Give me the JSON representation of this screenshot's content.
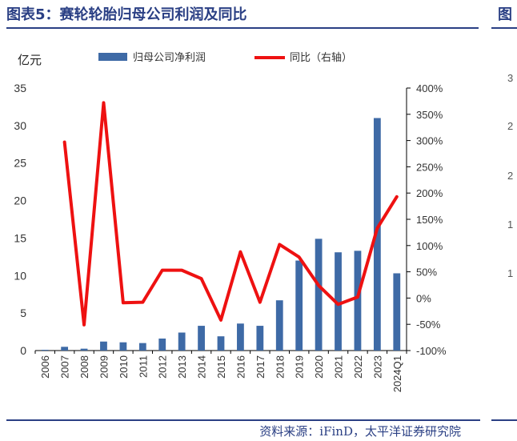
{
  "header": {
    "title": "图表5：赛轮轮胎归母公司利润及同比",
    "neighbor_title_fragment": "图"
  },
  "footer": {
    "source": "资料来源：iFinD，太平洋证券研究院"
  },
  "neighbor_chart_ticks": [
    "3",
    "2",
    "2",
    "1",
    "1"
  ],
  "chart_data": {
    "type": "bar",
    "title": "赛轮轮胎归母公司利润及同比",
    "categories": [
      "2006",
      "2007",
      "2008",
      "2009",
      "2010",
      "2011",
      "2012",
      "2013",
      "2014",
      "2015",
      "2016",
      "2017",
      "2018",
      "2019",
      "2020",
      "2021",
      "2022",
      "2023",
      "2024Q1"
    ],
    "y_unit_label": "亿元",
    "ylim": [
      0,
      35
    ],
    "yticks": [
      "35",
      "30",
      "25",
      "20",
      "15",
      "10",
      "5",
      "0"
    ],
    "y2lim": [
      -100,
      400
    ],
    "y2ticks": [
      "400%",
      "350%",
      "300%",
      "250%",
      "200%",
      "150%",
      "100%",
      "50%",
      "0%",
      "-50%",
      "-100%"
    ],
    "grid": false,
    "legend_position": "top",
    "series": [
      {
        "name": "归母公司净利润",
        "type": "bar",
        "axis": "left",
        "color": "#3e6aa6",
        "values": [
          0.1,
          0.5,
          0.25,
          1.2,
          1.1,
          1.0,
          1.6,
          2.4,
          3.3,
          1.9,
          3.6,
          3.3,
          6.7,
          12.0,
          14.9,
          13.1,
          13.3,
          31.0,
          10.3
        ]
      },
      {
        "name": "同比（右轴）",
        "type": "line",
        "axis": "right",
        "color": "#ee1111",
        "values": [
          null,
          297,
          -51,
          372,
          -9,
          -8,
          53,
          53,
          37,
          -42,
          88,
          -8,
          102,
          78,
          24,
          -12,
          2,
          133,
          193
        ]
      }
    ]
  }
}
